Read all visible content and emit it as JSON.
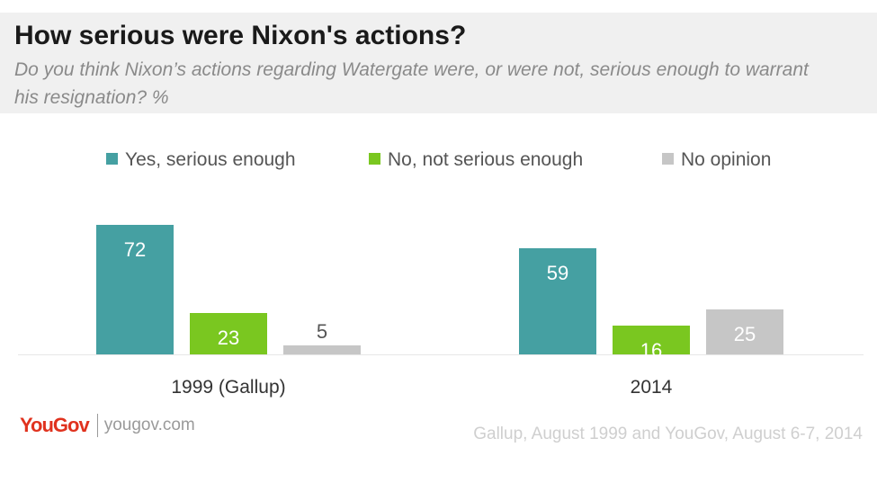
{
  "header": {
    "title": "How serious were Nixon's actions?",
    "subtitle": "Do you think Nixon’s actions regarding Watergate were, or were not, serious enough to warrant his resignation? %"
  },
  "chart_data": {
    "type": "bar",
    "categories": [
      "1999 (Gallup)",
      "2014"
    ],
    "series": [
      {
        "name": "Yes, serious enough",
        "color": "#45a0a2",
        "values": [
          72,
          59
        ]
      },
      {
        "name": "No, not serious enough",
        "color": "#7ac720",
        "values": [
          23,
          16
        ]
      },
      {
        "name": "No opinion",
        "color": "#c6c6c6",
        "values": [
          5,
          25
        ]
      }
    ],
    "data_labels": true,
    "legend_position": "top",
    "grid": false,
    "ylim": [
      0,
      80
    ]
  },
  "footer": {
    "brand": "YouGov",
    "url": "yougov.com",
    "source": "Gallup, August 1999 and YouGov, August 6-7, 2014"
  }
}
